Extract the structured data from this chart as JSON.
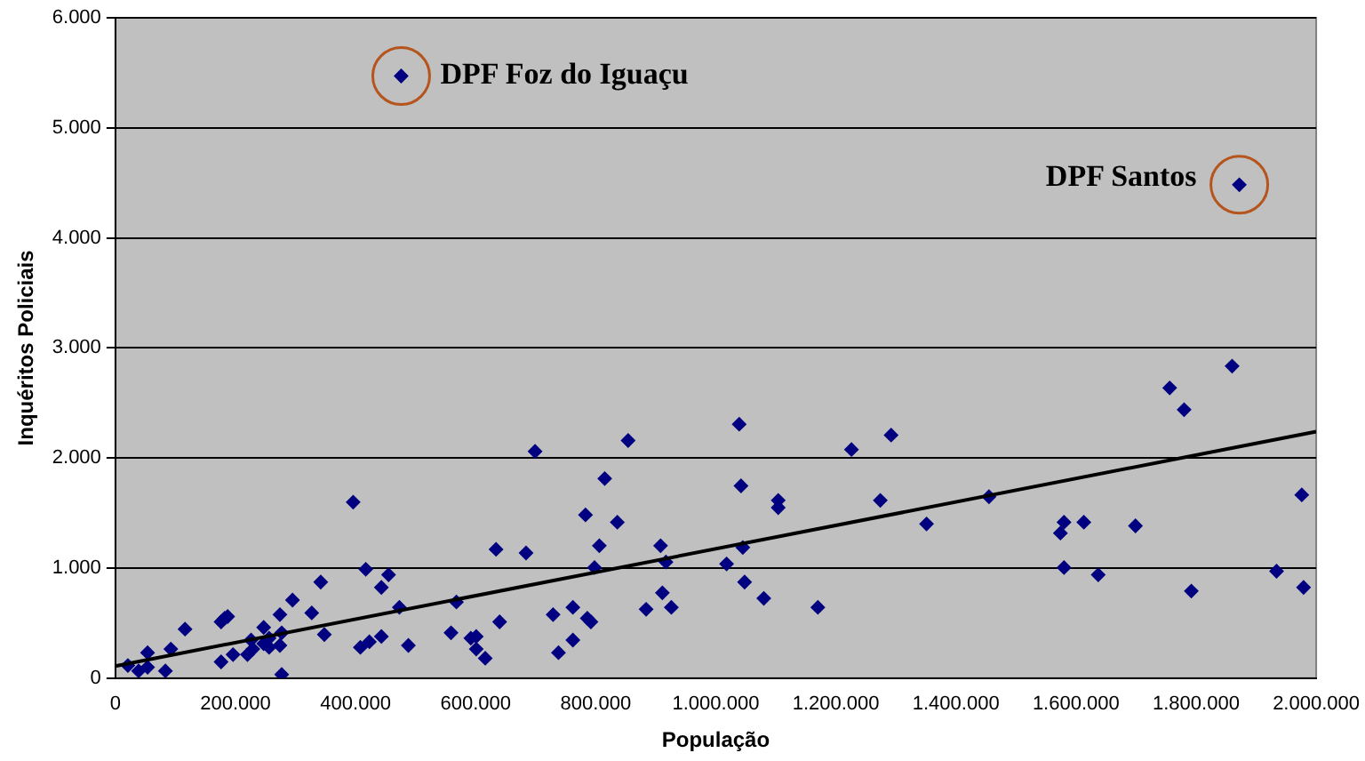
{
  "chart_data": {
    "type": "scatter",
    "xlabel": "População",
    "ylabel": "Inquéritos Policiais",
    "xlim": [
      0,
      2000000
    ],
    "ylim": [
      0,
      6000
    ],
    "xticks": [
      0,
      {
        "value": 200000,
        "label": "200.000"
      },
      {
        "value": 400000,
        "label": "400.000"
      },
      {
        "value": 600000,
        "label": "600.000"
      },
      {
        "value": 800000,
        "label": "800.000"
      },
      {
        "value": 1000000,
        "label": "1.000.000"
      },
      {
        "value": 1200000,
        "label": "1.200.000"
      },
      {
        "value": 1400000,
        "label": "1.400.000"
      },
      {
        "value": 1600000,
        "label": "1.600.000"
      },
      {
        "value": 1800000,
        "label": "1.800.000"
      },
      {
        "value": 2000000,
        "label": "2.000.000"
      }
    ],
    "yticks": [
      0,
      {
        "value": 1000,
        "label": "1.000"
      },
      {
        "value": 2000,
        "label": "2.000"
      },
      {
        "value": 3000,
        "label": "3.000"
      },
      {
        "value": 4000,
        "label": "4.000"
      },
      {
        "value": 5000,
        "label": "5.000"
      },
      {
        "value": 6000,
        "label": "6.000"
      }
    ],
    "grid": "y",
    "legend": false,
    "series": [
      {
        "marker": "diamond",
        "color": "#000080",
        "x": [
          20800,
          38700,
          53600,
          53600,
          83300,
          92300,
          116000,
          176000,
          176000,
          182000,
          187000,
          196000,
          220000,
          226000,
          229000,
          247000,
          247000,
          256000,
          256000,
          274000,
          274000,
          277000,
          277000,
          295000,
          327000,
          342000,
          348000,
          396000,
          408000,
          417000,
          423000,
          443000,
          443000,
          455000,
          473000,
          488000,
          559000,
          568000,
          592000,
          601000,
          601000,
          616000,
          634000,
          640000,
          684000,
          699000,
          729000,
          738000,
          762000,
          762000,
          783000,
          786000,
          792000,
          798000,
          806000,
          815000,
          836000,
          854000,
          884000,
          908000,
          911000,
          917000,
          926000,
          1018000,
          1039000,
          1042000,
          1045000,
          1048000,
          1080000,
          1104000,
          1104000,
          1170000,
          1226000,
          1274000,
          1292000,
          1351000,
          1455000,
          1574000,
          1580000,
          1580000,
          1613000,
          1637000,
          1699000,
          1756000,
          1780000,
          1792000,
          1860000,
          1934000,
          1976000,
          1979000,
          476000,
          1872000
        ],
        "values": [
          115,
          66,
          99,
          231,
          66,
          264,
          445,
          148,
          511,
          544,
          560,
          214,
          214,
          346,
          264,
          313,
          461,
          363,
          280,
          297,
          577,
          412,
          33,
          709,
          593,
          873,
          396,
          1599,
          280,
          989,
          330,
          824,
          379,
          939,
          643,
          297,
          412,
          692,
          363,
          379,
          264,
          181,
          1170,
          511,
          1137,
          2060,
          577,
          231,
          643,
          346,
          1483,
          544,
          511,
          1005,
          1203,
          1813,
          1417,
          2159,
          626,
          1203,
          775,
          1055,
          643,
          1038,
          2307,
          1747,
          1187,
          873,
          725,
          1615,
          1549,
          643,
          2077,
          1615,
          2208,
          1401,
          1648,
          1318,
          1417,
          1005,
          1417,
          939,
          1384,
          2637,
          2439,
          791,
          2835,
          972,
          1665,
          824,
          5471,
          4483
        ]
      },
      {
        "type": "line",
        "marker": "none",
        "color": "#000000",
        "x": [
          0,
          2000000
        ],
        "values": [
          110,
          2240
        ]
      }
    ],
    "annotations": [
      {
        "text": "DPF Foz do Iguaçu",
        "x": 476000,
        "y": 5471
      },
      {
        "text": "DPF Santos",
        "x": 1872000,
        "y": 4483
      }
    ]
  }
}
